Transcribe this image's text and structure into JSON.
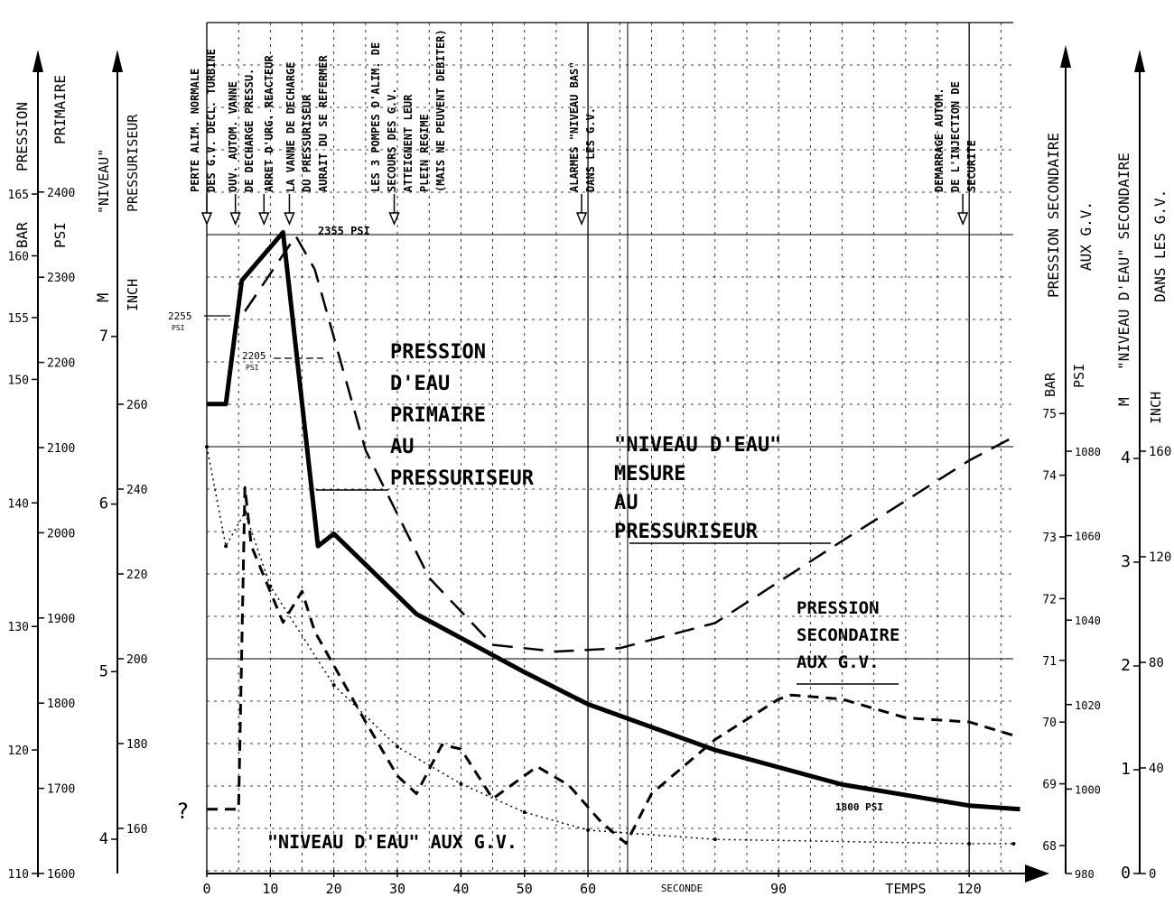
{
  "chart_data": {
    "type": "line",
    "x_axis": {
      "label": "TEMPS",
      "unit_label": "SECONDE",
      "ticks": [
        0,
        10,
        20,
        30,
        40,
        50,
        60,
        90,
        120
      ],
      "range": [
        0,
        128
      ],
      "grid": "dashed every 5 s"
    },
    "left_axes": [
      {
        "title": "PRESSION",
        "unit": "BAR",
        "ticks": [
          110,
          120,
          130,
          140,
          150,
          155,
          160,
          165
        ],
        "range": [
          110,
          165
        ]
      },
      {
        "title": "PRIMAIRE",
        "unit": "PSI",
        "ticks": [
          1600,
          1700,
          1800,
          1900,
          2000,
          2100,
          2200,
          2300,
          2400
        ],
        "range": [
          1600,
          2400
        ]
      },
      {
        "title": "\"NIVEAU\"",
        "unit": "M",
        "ticks": [
          4,
          5,
          6,
          7
        ]
      },
      {
        "title": "PRESSURISEUR",
        "unit": "INCH",
        "ticks": [
          160,
          180,
          200,
          220,
          240,
          260
        ]
      }
    ],
    "right_axes": [
      {
        "title": "PRESSION SECONDAIRE",
        "unit": "BAR",
        "ticks": [
          68,
          69,
          70,
          71,
          72,
          73,
          74,
          75
        ],
        "range": [
          68,
          75
        ]
      },
      {
        "title": "AUX G.V.",
        "unit": "PSI",
        "ticks": [
          980,
          1000,
          1020,
          1040,
          1060,
          1080
        ]
      },
      {
        "title": "\"NIVEAU D'EAU\" SECONDAIRE",
        "unit": "M",
        "ticks": [
          0,
          1,
          2,
          3,
          4
        ],
        "range": [
          0,
          4
        ]
      },
      {
        "title": "DANS LES G.V.",
        "unit": "INCH",
        "ticks": [
          0,
          40,
          80,
          120,
          160
        ]
      }
    ],
    "series": [
      {
        "label": "PRESSION D'EAU PRIMAIRE AU PRESSURISEUR",
        "axis": "primary_bar",
        "style": "thick",
        "x": [
          0,
          3,
          5.5,
          12,
          17.5,
          20,
          33,
          50,
          60,
          80,
          100,
          120,
          128
        ],
        "y": [
          148,
          148,
          158,
          161.9,
          136.5,
          137.5,
          131,
          126.3,
          123.7,
          120,
          117.2,
          115.5,
          115.2
        ]
      },
      {
        "label": "\"NIVEAU D'EAU\" MESURE AU PRESSURISEUR",
        "axis": "pressurizer_m",
        "style": "long-dash",
        "x": [
          6,
          14,
          17,
          25,
          35,
          45,
          55,
          65,
          80,
          100,
          120,
          127
        ],
        "y": [
          7.15,
          7.6,
          7.4,
          6.32,
          5.56,
          5.16,
          5.12,
          5.14,
          5.29,
          5.78,
          6.26,
          6.4
        ]
      },
      {
        "label": "PRESSION SECONDAIRE AUX G.V.",
        "axis": "secondary_bar",
        "style": "dotted",
        "x": [
          0,
          3,
          6,
          10,
          20,
          30,
          40,
          50,
          60,
          80,
          120,
          127
        ],
        "y": [
          74.46,
          72.85,
          73.4,
          72.2,
          70.6,
          69.6,
          69.0,
          68.54,
          68.25,
          68.1,
          68.03,
          68.03
        ]
      },
      {
        "label": "\"NIVEAU D'EAU\" AUX G.V.",
        "axis": "sg_level_m",
        "style": "dash",
        "x": [
          0,
          4,
          5,
          6,
          7,
          12,
          15,
          17,
          25,
          30,
          33,
          37,
          40,
          45,
          52,
          57,
          62,
          66,
          70,
          80,
          90,
          92,
          100,
          110,
          120,
          127
        ],
        "y": [
          0.62,
          0.62,
          0.62,
          3.72,
          3.16,
          2.42,
          2.72,
          2.33,
          1.46,
          0.94,
          0.77,
          1.24,
          1.2,
          0.72,
          1.03,
          0.85,
          0.5,
          0.29,
          0.77,
          1.29,
          1.68,
          1.72,
          1.68,
          1.5,
          1.46,
          1.33
        ]
      }
    ],
    "annotations": {
      "peak": "2355 PSI",
      "p2255": "2255",
      "p2205": "2205",
      "psi_small": "PSI",
      "p1800": "1800 PSI",
      "question": "?"
    },
    "events": [
      {
        "t": 0,
        "lines": [
          "PERTE ALIM. NORMALE",
          "DES G.V. DECL. TURBINE"
        ]
      },
      {
        "t": 4.5,
        "lines": [
          "OUV. AUTOM. VANNE",
          "DE DECHARGE PRESSU."
        ]
      },
      {
        "t": 9,
        "lines": [
          "ARRET D'URG. REACTEUR"
        ]
      },
      {
        "t": 13,
        "lines": [
          "LA VANNE DE DECHARGE",
          "DU PRESSURISEUR",
          "AURAIT DU SE REFERMER"
        ]
      },
      {
        "t": 29.5,
        "lines": [
          "LES 3 POMPES D'ALIM. DE",
          "SECOURS DES G.V.",
          "ATTEIGNENT LEUR",
          "PLEIN REGIME",
          "(MAIS NE PEUVENT DEBITER)"
        ]
      },
      {
        "t": 59,
        "lines": [
          "ALARMES \"NIVEAU BAS\"",
          "DANS LES G.V."
        ]
      },
      {
        "t": 119,
        "lines": [
          "DEMARRAGE AUTOM.",
          "DE L'INJECTION DE",
          "SECURITE"
        ]
      }
    ],
    "colors": {
      "ink": "#000000",
      "background": "#ffffff"
    }
  }
}
